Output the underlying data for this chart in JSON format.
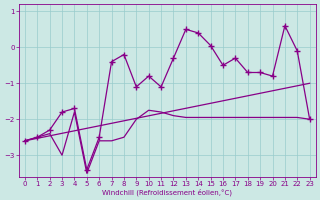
{
  "xlabel": "Windchill (Refroidissement éolien,°C)",
  "bg_color": "#cce8e4",
  "line_color": "#880088",
  "grid_color": "#99cccc",
  "xlim": [
    -0.5,
    23.5
  ],
  "ylim": [
    -3.6,
    1.2
  ],
  "yticks": [
    -3,
    -2,
    -1,
    0,
    1
  ],
  "xticks": [
    0,
    1,
    2,
    3,
    4,
    5,
    6,
    7,
    8,
    9,
    10,
    11,
    12,
    13,
    14,
    15,
    16,
    17,
    18,
    19,
    20,
    21,
    22,
    23
  ],
  "series1_x": [
    0,
    1,
    2,
    3,
    4,
    5,
    6,
    7,
    8,
    9,
    10,
    11,
    12,
    13,
    14,
    15,
    16,
    17,
    18,
    19,
    20,
    21,
    22,
    23
  ],
  "series1_y": [
    -2.6,
    -2.5,
    -2.3,
    -1.8,
    -1.7,
    -3.4,
    -2.5,
    -0.4,
    -0.2,
    -1.1,
    -0.8,
    -1.1,
    -0.3,
    0.5,
    0.4,
    0.05,
    -0.5,
    -0.3,
    -0.7,
    -0.7,
    -0.8,
    0.6,
    -0.1,
    -2.0
  ],
  "series2_x": [
    0,
    1,
    2,
    3,
    4,
    5,
    6,
    7,
    8,
    9,
    10,
    11,
    12,
    13,
    14,
    15,
    16,
    17,
    18,
    19,
    20,
    21,
    22,
    23
  ],
  "series2_y": [
    -2.6,
    -2.5,
    -2.4,
    -3.0,
    -1.8,
    -3.5,
    -2.6,
    -2.6,
    -2.5,
    -2.0,
    -1.75,
    -1.8,
    -1.9,
    -1.95,
    -1.95,
    -1.95,
    -1.95,
    -1.95,
    -1.95,
    -1.95,
    -1.95,
    -1.95,
    -1.95,
    -2.0
  ],
  "series3_x": [
    0,
    23
  ],
  "series3_y": [
    -2.6,
    -1.0
  ]
}
